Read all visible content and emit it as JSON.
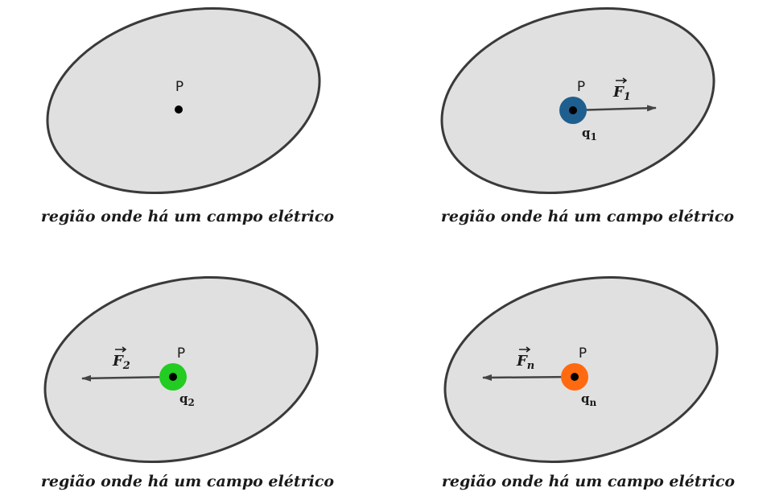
{
  "caption": "região onde há um campo elétrico",
  "colors": {
    "region_fill": "#e0e0e0",
    "region_stroke": "#3a3a3a",
    "charge_q1": "#1f5f8f",
    "charge_q2": "#22cc22",
    "charge_qn": "#ff6a10",
    "arrow": "#444444"
  },
  "panels": [
    {
      "point_label": "P",
      "caption": "região onde há um campo elétrico"
    },
    {
      "point_label": "P",
      "caption": "região onde há um campo elétrico",
      "force": {
        "symbol": "F",
        "subscript": "1",
        "direction": "right"
      },
      "charge": {
        "symbol": "q",
        "subscript": "1",
        "color": "#1f5f8f"
      }
    },
    {
      "point_label": "P",
      "caption": "região onde há um campo elétrico",
      "force": {
        "symbol": "F",
        "subscript": "2",
        "direction": "left"
      },
      "charge": {
        "symbol": "q",
        "subscript": "2",
        "color": "#22cc22"
      }
    },
    {
      "point_label": "P",
      "caption": "região onde há um campo elétrico",
      "force": {
        "symbol": "F",
        "subscript": "n",
        "direction": "left"
      },
      "charge": {
        "symbol": "q",
        "subscript": "n",
        "color": "#ff6a10"
      }
    }
  ]
}
